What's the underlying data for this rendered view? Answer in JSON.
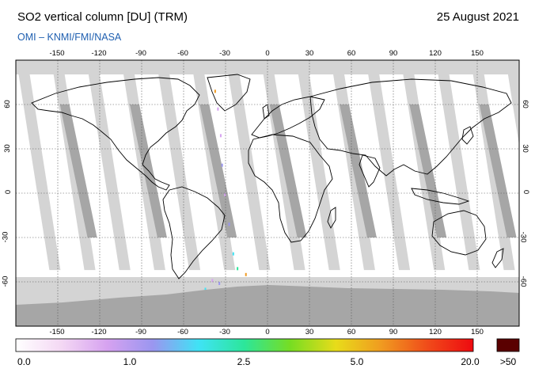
{
  "header": {
    "title": "SO2 vertical column [DU] (TRM)",
    "date": "25 August 2021",
    "credit": "OMI  –  KNMI/FMI/NASA"
  },
  "map": {
    "projection": "equirectangular",
    "lon_ticks": [
      "-150",
      "-120",
      "-90",
      "-60",
      "-30",
      "0",
      "30",
      "60",
      "90",
      "120",
      "150"
    ],
    "lat_ticks": [
      "60",
      "30",
      "0",
      "-30",
      "-60"
    ],
    "land_outline_color": "#000000",
    "no_data_light_color": "#d4d4d4",
    "no_data_dark_color": "#a6a6a6",
    "low_value_color": "#ffffff"
  },
  "colorbar": {
    "labels": [
      "0.0",
      "1.0",
      "2.5",
      "5.0",
      "20.0"
    ],
    "over_label": ">50",
    "over_color": "#5a0000",
    "stops": [
      "#ffffff",
      "#f4d8f4",
      "#d6a2f0",
      "#9a96f0",
      "#3fe3f5",
      "#2ce69a",
      "#77dd22",
      "#e8dc1a",
      "#f09a20",
      "#f04b1a",
      "#ee0a10"
    ]
  }
}
